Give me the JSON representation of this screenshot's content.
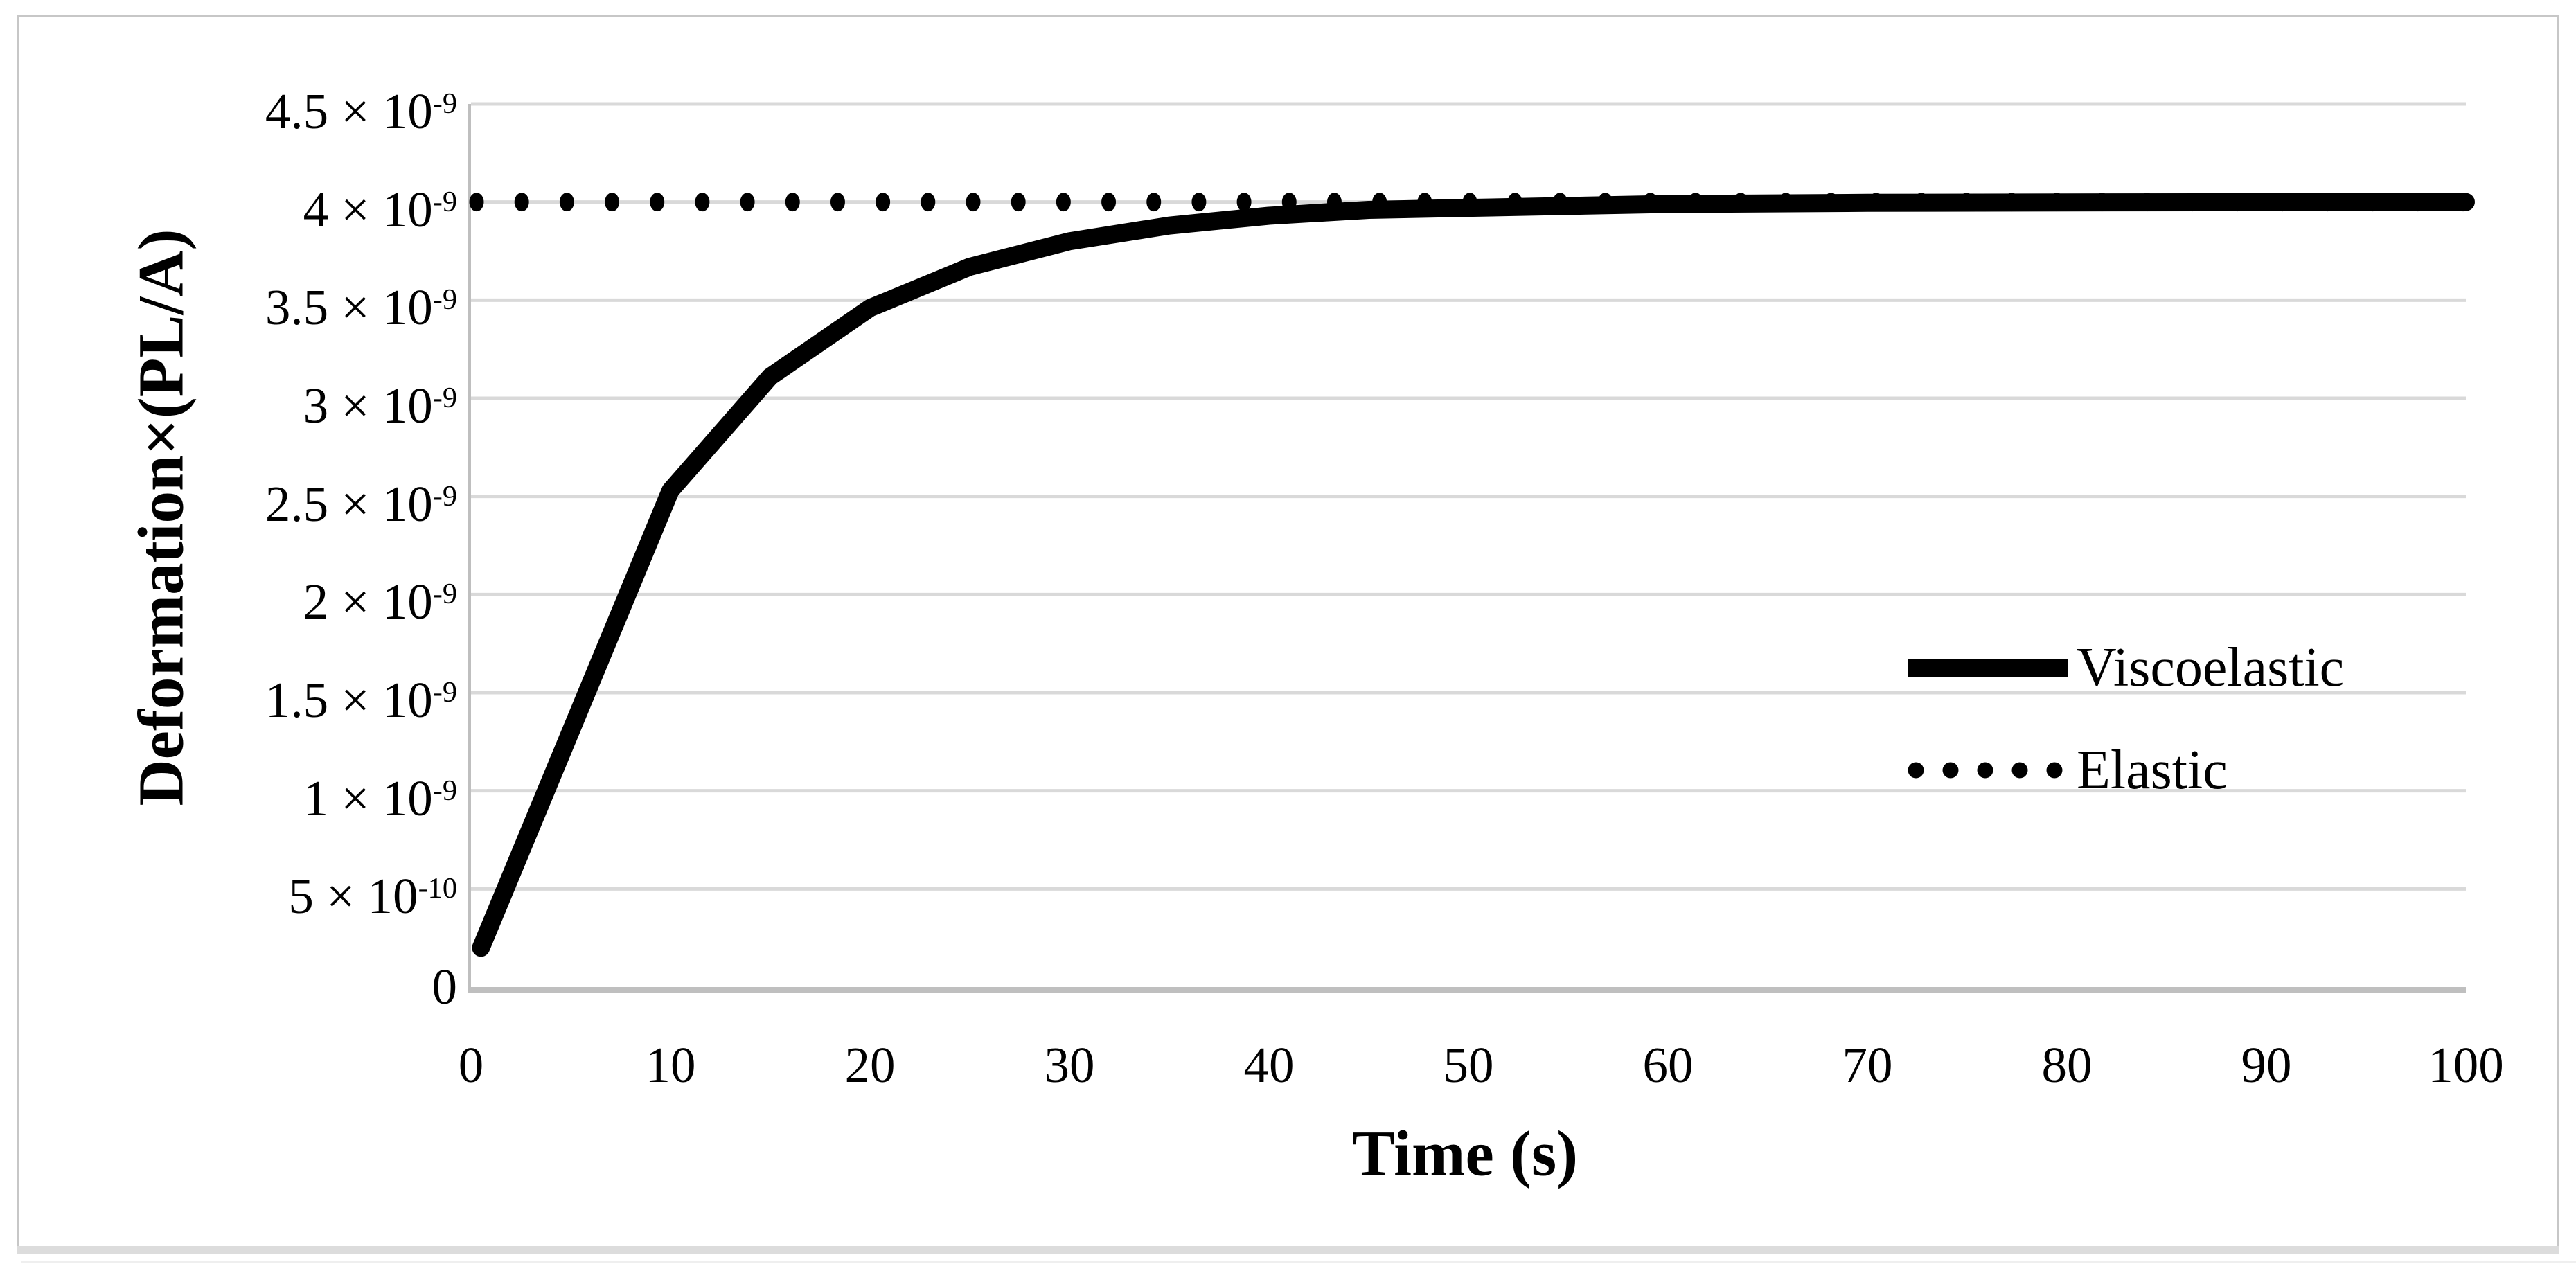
{
  "colors": {
    "series": "#000000",
    "gridline": "#d9d9d9",
    "axis_line": "#bfbfbf",
    "figure_border": "#c7c7c7"
  },
  "y_axis": {
    "title": "Deformation×(PL/A)",
    "ticks": [
      {
        "base": "0",
        "sup": ""
      },
      {
        "base": "5 × 10",
        "sup": "-10"
      },
      {
        "base": "1 × 10",
        "sup": "-9"
      },
      {
        "base": "1.5 × 10",
        "sup": "-9"
      },
      {
        "base": "2 × 10",
        "sup": "-9"
      },
      {
        "base": "2.5 × 10",
        "sup": "-9"
      },
      {
        "base": "3 × 10",
        "sup": "-9"
      },
      {
        "base": "3.5 × 10",
        "sup": "-9"
      },
      {
        "base": "4 × 10",
        "sup": "-9"
      },
      {
        "base": "4.5 × 10",
        "sup": "-9"
      }
    ]
  },
  "x_axis": {
    "title": "Time (s)",
    "ticks": [
      "0",
      "10",
      "20",
      "30",
      "40",
      "50",
      "60",
      "70",
      "80",
      "90",
      "100"
    ]
  },
  "legend": {
    "items": [
      {
        "label": "Viscoelastic",
        "style": "solid"
      },
      {
        "label": "Elastic",
        "style": "dotted"
      }
    ]
  },
  "chart_data": {
    "type": "line",
    "title": "",
    "xlabel": "Time (s)",
    "ylabel": "Deformation×(PL/A)",
    "xlim": [
      0,
      100
    ],
    "ylim": [
      0,
      4.5e-09
    ],
    "x_ticks": [
      0,
      10,
      20,
      30,
      40,
      50,
      60,
      70,
      80,
      90,
      100
    ],
    "y_ticks": [
      0,
      5e-10,
      1e-09,
      1.5e-09,
      2e-09,
      2.5e-09,
      3e-09,
      3.5e-09,
      4e-09,
      4.5e-09
    ],
    "grid": "horizontal",
    "legend_position": "middle-right",
    "series": [
      {
        "name": "Viscoelastic",
        "style": "solid",
        "color": "#000000",
        "x": [
          0.5,
          10,
          15,
          20,
          25,
          30,
          35,
          40,
          45,
          50,
          60,
          70,
          80,
          90,
          100
        ],
        "y": [
          2e-10,
          2.53e-09,
          3.11e-09,
          3.46e-09,
          3.67e-09,
          3.8e-09,
          3.88e-09,
          3.93e-09,
          3.96e-09,
          3.97e-09,
          3.99e-09,
          3.996e-09,
          3.998e-09,
          3.999e-09,
          4e-09
        ]
      },
      {
        "name": "Elastic",
        "style": "dotted",
        "color": "#000000",
        "x": [
          0,
          100
        ],
        "y": [
          4e-09,
          4e-09
        ]
      }
    ]
  }
}
